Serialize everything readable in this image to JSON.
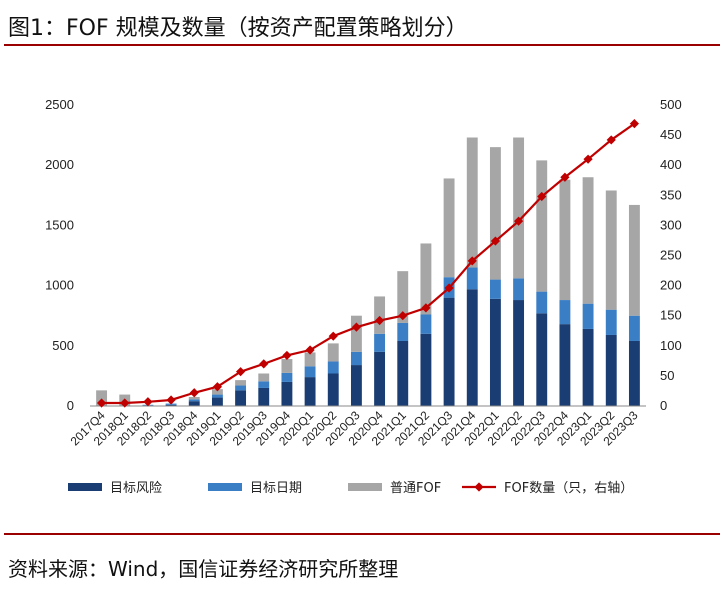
{
  "figure": {
    "title": "图1：FOF 规模及数量（按资产配置策略划分）",
    "source": "资料来源：Wind，国信证券经济研究所整理"
  },
  "colors": {
    "target_risk": "#1a3d73",
    "target_date": "#3a7fc6",
    "regular_fof": "#a6a6a6",
    "count_line": "#c00000",
    "rule": "#9b0000"
  },
  "chart_data": {
    "type": "bar",
    "stacked": true,
    "categories": [
      "2017Q4",
      "2018Q1",
      "2018Q2",
      "2018Q3",
      "2018Q4",
      "2019Q1",
      "2019Q2",
      "2019Q3",
      "2019Q4",
      "2020Q1",
      "2020Q2",
      "2020Q3",
      "2020Q4",
      "2021Q1",
      "2021Q2",
      "2021Q3",
      "2021Q4",
      "2022Q1",
      "2022Q2",
      "2022Q3",
      "2022Q4",
      "2023Q1",
      "2023Q2",
      "2023Q3"
    ],
    "series": [
      {
        "name": "目标风险",
        "axis": "left",
        "type": "bar",
        "values": [
          0,
          0,
          5,
          10,
          40,
          70,
          130,
          150,
          200,
          240,
          270,
          340,
          450,
          540,
          600,
          900,
          970,
          890,
          880,
          770,
          680,
          640,
          590,
          540
        ]
      },
      {
        "name": "目标日期",
        "axis": "left",
        "type": "bar",
        "values": [
          0,
          0,
          5,
          10,
          15,
          25,
          40,
          55,
          75,
          90,
          100,
          110,
          150,
          150,
          160,
          170,
          180,
          160,
          180,
          180,
          200,
          210,
          210,
          210
        ]
      },
      {
        "name": "普通FOF",
        "axis": "left",
        "type": "bar",
        "values": [
          130,
          95,
          0,
          0,
          20,
          45,
          45,
          65,
          115,
          115,
          150,
          300,
          310,
          430,
          590,
          820,
          1080,
          1100,
          1170,
          1090,
          1000,
          1050,
          990,
          920
        ]
      },
      {
        "name": "FOF数量（只，右轴）",
        "axis": "right",
        "type": "line",
        "values": [
          5,
          5,
          7,
          10,
          22,
          32,
          57,
          70,
          84,
          93,
          116,
          131,
          142,
          150,
          163,
          196,
          241,
          274,
          307,
          348,
          380,
          410,
          442,
          469
        ]
      }
    ],
    "y_left": {
      "min": 0,
      "max": 2500,
      "ticks": [
        0,
        500,
        1000,
        1500,
        2000,
        2500
      ]
    },
    "y_right": {
      "min": 0,
      "max": 500,
      "ticks": [
        0,
        50,
        100,
        150,
        200,
        250,
        300,
        350,
        400,
        450,
        500
      ]
    },
    "legend_position": "bottom",
    "title": "",
    "xlabel": "",
    "ylabel": ""
  }
}
